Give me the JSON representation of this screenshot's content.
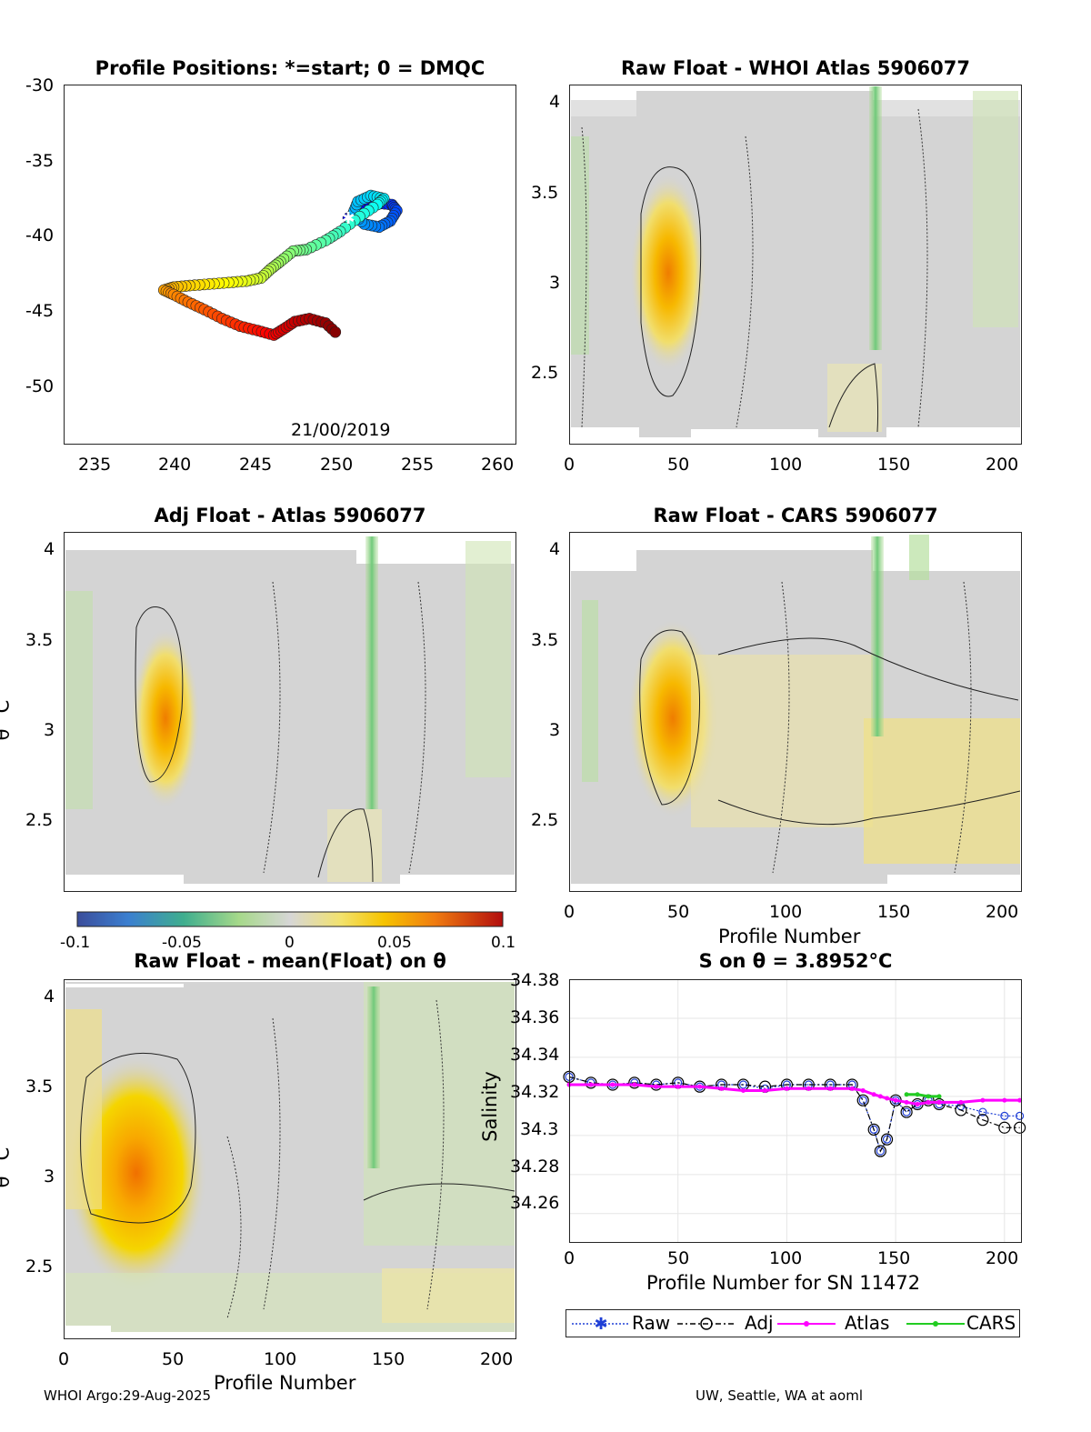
{
  "panels": {
    "map": {
      "title": "Profile Positions: *=start; 0 = DMQC",
      "date_label": "21/00/2019",
      "x_ticks": [
        "235",
        "240",
        "245",
        "250",
        "255",
        "260"
      ],
      "y_ticks": [
        "-30",
        "-35",
        "-40",
        "-45",
        "-50"
      ]
    },
    "whoi_atlas": {
      "title": "Raw Float - WHOI Atlas  5906077",
      "x_ticks": [
        "0",
        "50",
        "100",
        "150",
        "200"
      ],
      "y_ticks": [
        "4",
        "3.5",
        "3",
        "2.5"
      ]
    },
    "adj_atlas": {
      "title": "Adj Float - Atlas  5906077",
      "ylabel": "θ °C",
      "x_ticks": [
        "0",
        "50",
        "100",
        "150",
        "200"
      ],
      "y_ticks": [
        "4",
        "3.5",
        "3",
        "2.5"
      ]
    },
    "cars": {
      "title": "Raw Float - CARS  5906077",
      "xlabel": "Profile Number",
      "x_ticks": [
        "0",
        "50",
        "100",
        "150",
        "200"
      ],
      "y_ticks": [
        "4",
        "3.5",
        "3",
        "2.5"
      ]
    },
    "colorbar": {
      "ticks": [
        "-0.1",
        "-0.05",
        "0",
        "0.05",
        "0.1"
      ]
    },
    "mean_float": {
      "title": "Raw Float - mean(Float) on θ",
      "ylabel": "θ °C",
      "xlabel": "Profile Number",
      "x_ticks": [
        "0",
        "50",
        "100",
        "150",
        "200"
      ],
      "y_ticks": [
        "4",
        "3.5",
        "3",
        "2.5"
      ]
    },
    "salinity": {
      "title": "S on θ = 3.8952°C",
      "ylabel": "Salinity",
      "xlabel": "Profile Number for SN 11472",
      "x_ticks": [
        "0",
        "50",
        "100",
        "150",
        "200"
      ],
      "y_ticks": [
        "34.38",
        "34.36",
        "34.34",
        "34.32",
        "34.3",
        "34.28",
        "34.26"
      ]
    }
  },
  "legend": {
    "raw": "Raw",
    "adj": "Adj",
    "atlas": "Atlas",
    "cars": "CARS"
  },
  "footer": {
    "left": "WHOI Argo:29-Aug-2025",
    "right": "UW, Seattle, WA at aoml"
  },
  "colors": {
    "raw": "#1f3fd6",
    "adj": "#000000",
    "atlas": "#ff00ff",
    "cars": "#22cc22",
    "background_field": "#d4d4d4"
  },
  "chart_data": [
    {
      "type": "scatter",
      "title": "Profile Positions: *=start; 0 = DMQC",
      "xlabel": "",
      "ylabel": "",
      "xlim": [
        233,
        261
      ],
      "ylim": [
        -54,
        -30
      ],
      "track": {
        "x": [
          250.6,
          251.5,
          252.4,
          253.3,
          253.6,
          253.2,
          252.5,
          251.6,
          250.9,
          251.2,
          252.0,
          252.8,
          252.4,
          251.3,
          250.1,
          249.2,
          248.0,
          247.2,
          246.4,
          245.8,
          245.2,
          244.3,
          243.2,
          242.0,
          240.8,
          239.8,
          239.2,
          239.8,
          240.7,
          241.7,
          242.8,
          243.9,
          245.0,
          246.0,
          246.6,
          247.3,
          248.2,
          249.2,
          250.0
        ],
        "y": [
          -38.9,
          -38.3,
          -37.9,
          -38.0,
          -38.4,
          -39.1,
          -39.5,
          -39.3,
          -38.6,
          -37.8,
          -37.4,
          -37.6,
          -38.0,
          -38.8,
          -39.8,
          -40.4,
          -41.0,
          -41.1,
          -41.8,
          -42.3,
          -42.9,
          -43.1,
          -43.2,
          -43.3,
          -43.4,
          -43.5,
          -43.7,
          -44.0,
          -44.5,
          -45.0,
          -45.6,
          -46.1,
          -46.4,
          -46.7,
          -46.3,
          -45.8,
          -45.6,
          -45.9,
          -46.7
        ]
      }
    },
    {
      "type": "heatmap",
      "title": "Raw Float - WHOI Atlas  5906077",
      "xlabel": "Profile Number",
      "ylabel": "θ °C",
      "xlim": [
        0,
        208
      ],
      "ylim": [
        2.1,
        4.1
      ],
      "anomaly_center": {
        "profile": 47,
        "theta": 3.0,
        "value": 0.04
      }
    },
    {
      "type": "heatmap",
      "title": "Adj Float - Atlas  5906077",
      "xlabel": "Profile Number",
      "ylabel": "θ °C",
      "xlim": [
        0,
        208
      ],
      "ylim": [
        2.1,
        4.1
      ],
      "anomaly_center": {
        "profile": 45,
        "theta": 3.0,
        "value": 0.04
      }
    },
    {
      "type": "heatmap",
      "title": "Raw Float - CARS  5906077",
      "xlabel": "Profile Number",
      "ylabel": "θ °C",
      "xlim": [
        0,
        208
      ],
      "ylim": [
        2.1,
        4.1
      ],
      "anomaly_center": {
        "profile": 47,
        "theta": 3.0,
        "value": 0.045
      }
    },
    {
      "type": "heatmap",
      "title": "Raw Float - mean(Float) on θ",
      "xlabel": "Profile Number",
      "ylabel": "θ °C",
      "xlim": [
        0,
        208
      ],
      "ylim": [
        2.1,
        4.1
      ],
      "anomaly_center": {
        "profile": 30,
        "theta": 3.0,
        "value": 0.05
      },
      "colorbar": {
        "min": -0.1,
        "max": 0.1
      }
    },
    {
      "type": "line",
      "title": "S on θ = 3.8952°C",
      "xlabel": "Profile Number for SN 11472",
      "ylabel": "Salinity",
      "xlim": [
        0,
        208
      ],
      "ylim": [
        34.245,
        34.38
      ],
      "x": [
        0,
        10,
        20,
        30,
        40,
        50,
        60,
        70,
        80,
        90,
        100,
        110,
        120,
        130,
        135,
        140,
        143,
        146,
        150,
        155,
        160,
        165,
        170,
        180,
        190,
        200,
        207
      ],
      "series": [
        {
          "name": "Raw",
          "values": [
            34.33,
            34.327,
            34.326,
            34.327,
            34.326,
            34.327,
            34.325,
            34.326,
            34.326,
            34.324,
            34.326,
            34.326,
            34.326,
            34.326,
            34.318,
            34.303,
            34.292,
            34.298,
            34.318,
            34.312,
            34.316,
            34.318,
            34.316,
            34.315,
            34.312,
            34.31,
            34.31
          ]
        },
        {
          "name": "Adj",
          "values": [
            34.33,
            34.327,
            34.326,
            34.327,
            34.326,
            34.327,
            34.325,
            34.326,
            34.326,
            34.325,
            34.326,
            34.326,
            34.326,
            34.326,
            34.318,
            34.303,
            34.292,
            34.298,
            34.318,
            34.312,
            34.316,
            34.318,
            34.316,
            34.313,
            34.308,
            34.304,
            34.304
          ]
        },
        {
          "name": "Atlas",
          "values": [
            34.326,
            34.326,
            34.326,
            34.326,
            34.325,
            34.325,
            34.325,
            34.324,
            34.323,
            34.323,
            34.324,
            34.324,
            34.324,
            34.324,
            34.323,
            34.321,
            34.32,
            34.319,
            34.318,
            34.317,
            34.316,
            34.317,
            34.317,
            34.317,
            34.318,
            34.318,
            34.318
          ]
        },
        {
          "name": "CARS",
          "values": [
            null,
            null,
            null,
            null,
            null,
            null,
            null,
            null,
            null,
            null,
            null,
            null,
            null,
            null,
            null,
            null,
            null,
            null,
            null,
            34.321,
            34.321,
            34.32,
            34.32,
            null,
            null,
            null,
            null
          ]
        }
      ]
    }
  ]
}
